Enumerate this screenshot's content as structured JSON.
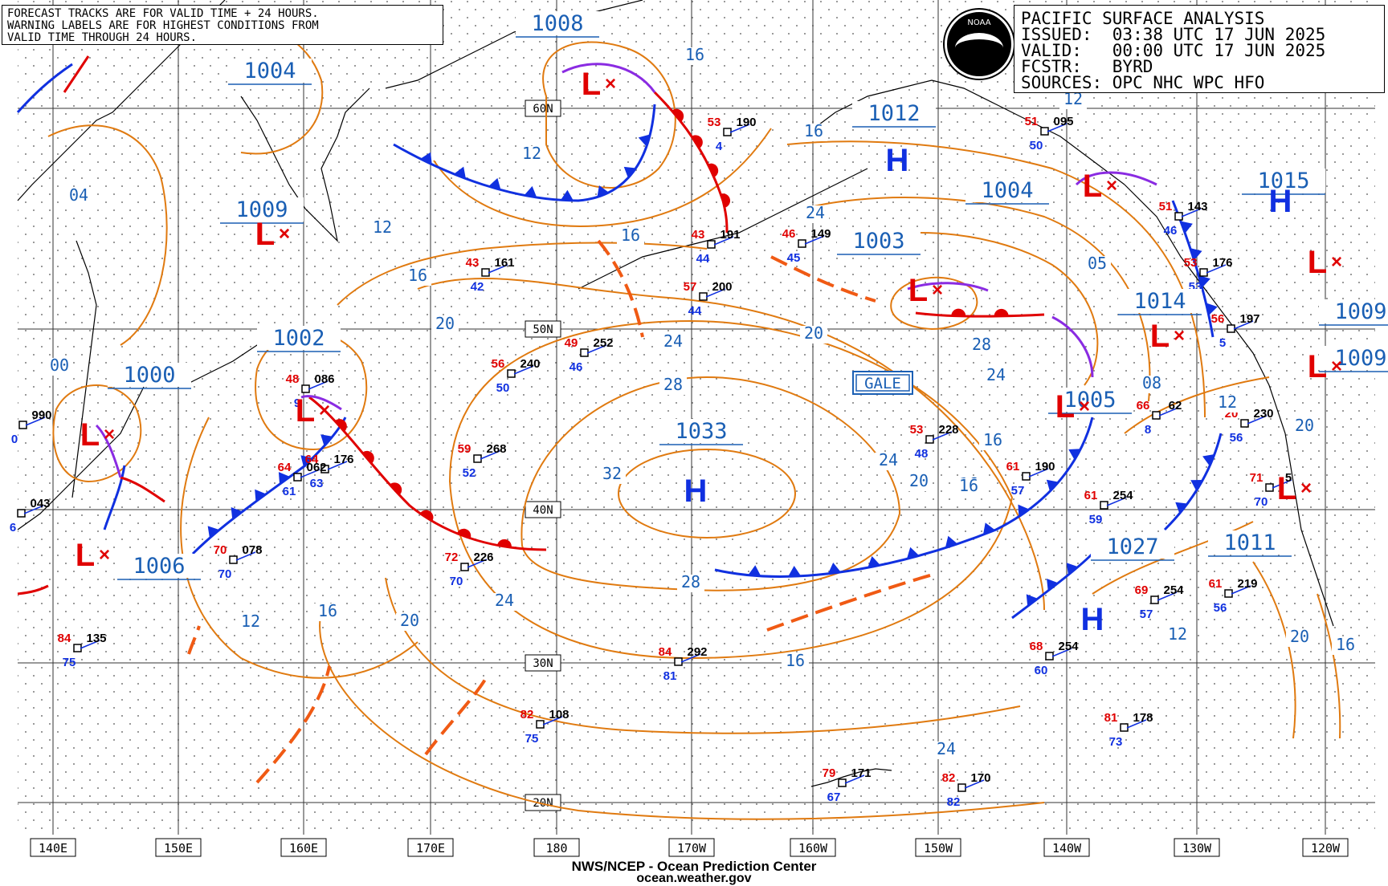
{
  "warning_box": {
    "lines": [
      "FORECAST TRACKS ARE FOR VALID TIME + 24 HOURS.",
      "WARNING LABELS ARE FOR HIGHEST CONDITIONS FROM",
      "VALID TIME THROUGH 24 HOURS."
    ]
  },
  "info_box": {
    "title": "PACIFIC SURFACE ANALYSIS",
    "issued": "ISSUED:  03:38 UTC 17 JUN 2025",
    "valid": "VALID:   00:00 UTC 17 JUN 2025",
    "forecaster": "FCSTR:   BYRD",
    "sources": "SOURCES: OPC NHC WPC HFO"
  },
  "logo": {
    "text": "NOAA"
  },
  "credits": {
    "line1": "NWS/NCEP - Ocean Prediction Center",
    "line2": "ocean.weather.gov"
  },
  "colors": {
    "isobar": "#e07a10",
    "isobar_label": "#1a5fb4",
    "front_cold": "#1030e0",
    "front_warm": "#e00000",
    "front_occluded": "#8a2be2",
    "low": "#e00000",
    "high": "#1030e0",
    "coast": "#000000"
  },
  "longitude_labels": [
    "140E",
    "150E",
    "160E",
    "170E",
    "180",
    "170W",
    "160W",
    "150W",
    "140W",
    "130W",
    "120W"
  ],
  "latitude_labels": [
    "60N",
    "50N",
    "40N",
    "30N",
    "20N"
  ],
  "pressure_centers": [
    {
      "type": "L",
      "value": "1008"
    },
    {
      "type": "L",
      "value": "1004"
    },
    {
      "type": "L",
      "value": "1009"
    },
    {
      "type": "L",
      "value": "1002"
    },
    {
      "type": "L",
      "value": "1000"
    },
    {
      "type": "L",
      "value": "1006"
    },
    {
      "type": "H",
      "value": "1033"
    },
    {
      "type": "H",
      "value": "1012"
    },
    {
      "type": "L",
      "value": "1004"
    },
    {
      "type": "L",
      "value": "1003"
    },
    {
      "type": "L",
      "value": "1014"
    },
    {
      "type": "L",
      "value": "1005"
    },
    {
      "type": "H",
      "value": "1027"
    },
    {
      "type": "H",
      "value": "1015"
    },
    {
      "type": "L",
      "value": "1009"
    },
    {
      "type": "L",
      "value": "1009"
    },
    {
      "type": "L",
      "value": "1011"
    }
  ],
  "isobar_labels": [
    "04",
    "00",
    "12",
    "16",
    "12",
    "16",
    "20",
    "24",
    "28",
    "32",
    "28",
    "24",
    "20",
    "16",
    "12",
    "16",
    "20",
    "24",
    "28",
    "24",
    "16",
    "16",
    "08",
    "12",
    "20",
    "16",
    "20",
    "24",
    "16",
    "12",
    "16",
    "20",
    "24",
    "16",
    "05",
    "12"
  ],
  "warning_label": "GALE",
  "stations": [
    {
      "t": "53",
      "p": "190",
      "d": "4"
    },
    {
      "t": "43",
      "p": "191",
      "d": "44"
    },
    {
      "t": "57",
      "p": "200",
      "d": "44"
    },
    {
      "t": "43",
      "p": "161",
      "d": "42"
    },
    {
      "t": "46",
      "p": "149",
      "d": "45"
    },
    {
      "t": "49",
      "p": "252",
      "d": "46"
    },
    {
      "t": "56",
      "p": "240",
      "d": "50"
    },
    {
      "t": "59",
      "p": "268",
      "d": "52"
    },
    {
      "t": "72",
      "p": "226",
      "d": "70"
    },
    {
      "t": "48",
      "p": "086",
      "d": "9"
    },
    {
      "t": "64",
      "p": "176",
      "d": "63"
    },
    {
      "t": "64",
      "p": "062",
      "d": "61"
    },
    {
      "t": "70",
      "p": "078",
      "d": "70"
    },
    {
      "t": "84",
      "p": "135",
      "d": "75"
    },
    {
      "t": "84",
      "p": "292",
      "d": "81"
    },
    {
      "t": "82",
      "p": "108",
      "d": "75"
    },
    {
      "t": "79",
      "p": "171",
      "d": "67"
    },
    {
      "t": "82",
      "p": "170",
      "d": "82"
    },
    {
      "t": "53",
      "p": "228",
      "d": "48"
    },
    {
      "t": "61",
      "p": "190",
      "d": "57"
    },
    {
      "t": "61",
      "p": "254",
      "d": "59"
    },
    {
      "t": "66",
      "p": "62",
      "d": "8"
    },
    {
      "t": "69",
      "p": "254",
      "d": "57"
    },
    {
      "t": "61",
      "p": "219",
      "d": "56"
    },
    {
      "t": "68",
      "p": "254",
      "d": "60"
    },
    {
      "t": "81",
      "p": "178",
      "d": "73"
    },
    {
      "t": "51",
      "p": "095",
      "d": "50"
    },
    {
      "t": "51",
      "p": "143",
      "d": "46"
    },
    {
      "t": "53",
      "p": "176",
      "d": "53"
    },
    {
      "t": "56",
      "p": "197",
      "d": "5"
    },
    {
      "t": "20",
      "p": "230",
      "d": "56"
    },
    {
      "t": "71",
      "p": "5",
      "d": "70"
    },
    {
      "t": "",
      "p": "990",
      "d": "0"
    },
    {
      "t": "",
      "p": "043",
      "d": "6"
    }
  ]
}
